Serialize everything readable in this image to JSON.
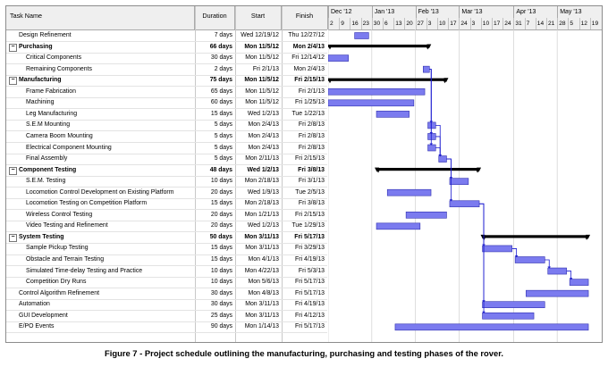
{
  "columns": {
    "name": "Task Name",
    "duration": "Duration",
    "start": "Start",
    "finish": "Finish"
  },
  "timeline": {
    "months": [
      "Dec '12",
      "Jan '13",
      "Feb '13",
      "Mar '13",
      "Apr '13",
      "May '13"
    ],
    "days": [
      "2",
      "9",
      "16",
      "23",
      "30",
      "6",
      "13",
      "20",
      "27",
      "3",
      "10",
      "17",
      "24",
      "3",
      "10",
      "17",
      "24",
      "31",
      "7",
      "14",
      "21",
      "28",
      "5",
      "12",
      "19"
    ]
  },
  "tasks": [
    {
      "name": "Design Refinement",
      "duration": "7 days",
      "start": "Wed 12/19/12",
      "finish": "Thu 12/27/12",
      "level": 0,
      "summary": false
    },
    {
      "name": "Purchasing",
      "duration": "66 days",
      "start": "Mon 11/5/12",
      "finish": "Mon 2/4/13",
      "level": 0,
      "summary": true
    },
    {
      "name": "Critical Components",
      "duration": "30 days",
      "start": "Mon 11/5/12",
      "finish": "Fri 12/14/12",
      "level": 1,
      "summary": false
    },
    {
      "name": "Remaining Components",
      "duration": "2 days",
      "start": "Fri 2/1/13",
      "finish": "Mon 2/4/13",
      "level": 1,
      "summary": false
    },
    {
      "name": "Manufacturing",
      "duration": "75 days",
      "start": "Mon 11/5/12",
      "finish": "Fri 2/15/13",
      "level": 0,
      "summary": true
    },
    {
      "name": "Frame Fabrication",
      "duration": "65 days",
      "start": "Mon 11/5/12",
      "finish": "Fri 2/1/13",
      "level": 1,
      "summary": false
    },
    {
      "name": "Machining",
      "duration": "60 days",
      "start": "Mon 11/5/12",
      "finish": "Fri 1/25/13",
      "level": 1,
      "summary": false
    },
    {
      "name": "Leg Manufacturing",
      "duration": "15 days",
      "start": "Wed 1/2/13",
      "finish": "Tue 1/22/13",
      "level": 1,
      "summary": false
    },
    {
      "name": "S.E.M Mounting",
      "duration": "5 days",
      "start": "Mon 2/4/13",
      "finish": "Fri 2/8/13",
      "level": 1,
      "summary": false
    },
    {
      "name": "Camera Boom Mounting",
      "duration": "5 days",
      "start": "Mon 2/4/13",
      "finish": "Fri 2/8/13",
      "level": 1,
      "summary": false
    },
    {
      "name": "Electrical Component Mounting",
      "duration": "5 days",
      "start": "Mon 2/4/13",
      "finish": "Fri 2/8/13",
      "level": 1,
      "summary": false
    },
    {
      "name": "Final Assembly",
      "duration": "5 days",
      "start": "Mon 2/11/13",
      "finish": "Fri 2/15/13",
      "level": 1,
      "summary": false
    },
    {
      "name": "Component Testing",
      "duration": "48 days",
      "start": "Wed 1/2/13",
      "finish": "Fri 3/8/13",
      "level": 0,
      "summary": true
    },
    {
      "name": "S.E.M. Testing",
      "duration": "10 days",
      "start": "Mon 2/18/13",
      "finish": "Fri 3/1/13",
      "level": 1,
      "summary": false
    },
    {
      "name": "Locomotion Control Development on Existing Platform",
      "duration": "20 days",
      "start": "Wed 1/9/13",
      "finish": "Tue 2/5/13",
      "level": 1,
      "summary": false
    },
    {
      "name": "Locomotion Testing on Competition Platform",
      "duration": "15 days",
      "start": "Mon 2/18/13",
      "finish": "Fri 3/8/13",
      "level": 1,
      "summary": false
    },
    {
      "name": "Wireless Control Testing",
      "duration": "20 days",
      "start": "Mon 1/21/13",
      "finish": "Fri 2/15/13",
      "level": 1,
      "summary": false
    },
    {
      "name": "Video Testing and Refinement",
      "duration": "20 days",
      "start": "Wed 1/2/13",
      "finish": "Tue 1/29/13",
      "level": 1,
      "summary": false
    },
    {
      "name": "System Testing",
      "duration": "50 days",
      "start": "Mon 3/11/13",
      "finish": "Fri 5/17/13",
      "level": 0,
      "summary": true
    },
    {
      "name": "Sample Pickup Testing",
      "duration": "15 days",
      "start": "Mon 3/11/13",
      "finish": "Fri 3/29/13",
      "level": 1,
      "summary": false
    },
    {
      "name": "Obstacle and Terrain Testing",
      "duration": "15 days",
      "start": "Mon 4/1/13",
      "finish": "Fri 4/19/13",
      "level": 1,
      "summary": false
    },
    {
      "name": "Simulated Time-delay Testing and Practice",
      "duration": "10 days",
      "start": "Mon 4/22/13",
      "finish": "Fri 5/3/13",
      "level": 1,
      "summary": false
    },
    {
      "name": "Competition Dry Runs",
      "duration": "10 days",
      "start": "Mon 5/6/13",
      "finish": "Fri 5/17/13",
      "level": 1,
      "summary": false
    },
    {
      "name": "Control Algorithm Refinement",
      "duration": "30 days",
      "start": "Mon 4/8/13",
      "finish": "Fri 5/17/13",
      "level": 0,
      "summary": false
    },
    {
      "name": "Automation",
      "duration": "30 days",
      "start": "Mon 3/11/13",
      "finish": "Fri 4/19/13",
      "level": 0,
      "summary": false
    },
    {
      "name": "GUI Development",
      "duration": "25 days",
      "start": "Mon 3/11/13",
      "finish": "Fri 4/12/13",
      "level": 0,
      "summary": false
    },
    {
      "name": "E/PO Events",
      "duration": "90 days",
      "start": "Mon 1/14/13",
      "finish": "Fri 5/17/13",
      "level": 0,
      "summary": false
    }
  ],
  "colors": {
    "task_bar": "#7b7bef",
    "task_border": "#3030b0",
    "summary_bar": "#000000",
    "link": "#1a1ad0"
  },
  "caption": "Figure 7 - Project schedule outlining the manufacturing, purchasing and testing phases of the rover."
}
